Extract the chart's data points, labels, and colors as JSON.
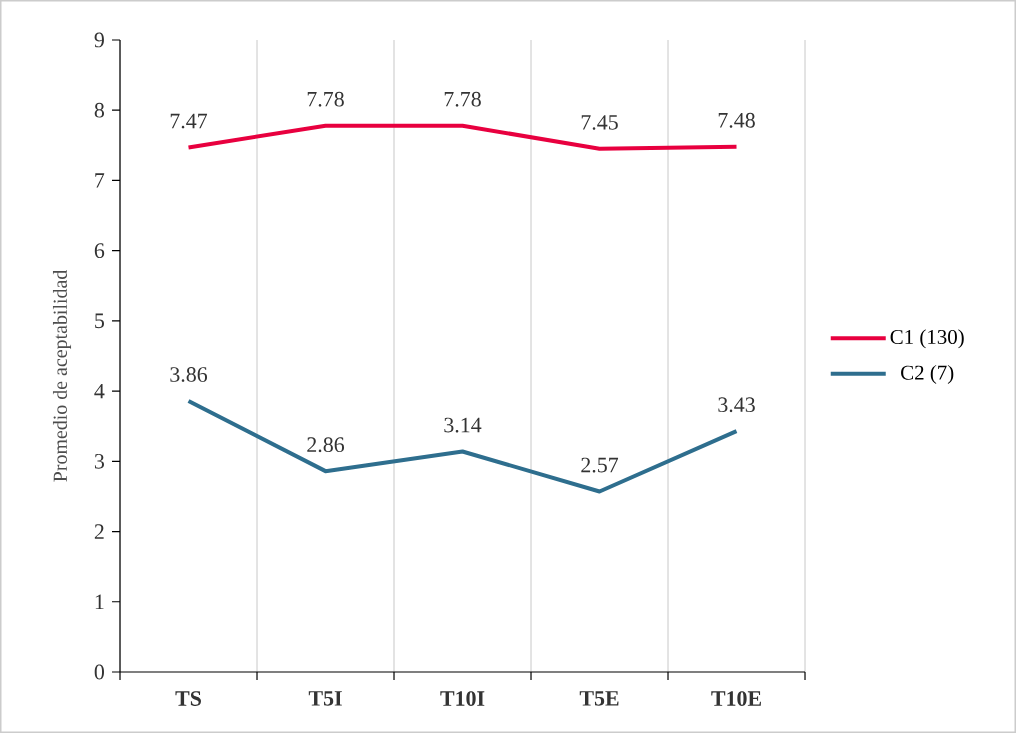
{
  "chart_data": {
    "type": "line",
    "ylabel": "Promedio de aceptabilidad",
    "categories": [
      "TS",
      "T5I",
      "T10I",
      "T5E",
      "T10E"
    ],
    "series": [
      {
        "name": "C1 (130)",
        "color": "#e8003f",
        "values": [
          7.47,
          7.78,
          7.78,
          7.45,
          7.48
        ]
      },
      {
        "name": "C2 (7)",
        "color": "#2e6e8e",
        "values": [
          3.86,
          2.86,
          3.14,
          2.57,
          3.43
        ]
      }
    ],
    "ylim": [
      0,
      9
    ],
    "yticks": [
      0,
      1,
      2,
      3,
      4,
      5,
      6,
      7,
      8,
      9
    ],
    "grid": "x",
    "legend": "right",
    "data_labels": true,
    "marker": "none",
    "line_style": "solid"
  }
}
